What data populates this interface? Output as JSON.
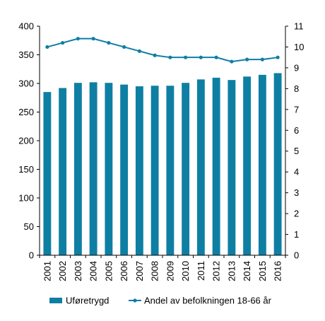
{
  "chart_data": {
    "type": "bar+line",
    "categories": [
      "2001",
      "2002",
      "2003",
      "2004",
      "2005",
      "2006",
      "2007",
      "2008",
      "2009",
      "2010",
      "2011",
      "2012",
      "2013",
      "2014",
      "2015",
      "2016"
    ],
    "series": [
      {
        "name": "Uføretrygd",
        "type": "bar",
        "axis": "left",
        "color": "#0e7fa3",
        "values": [
          285,
          292,
          301,
          302,
          301,
          298,
          295,
          296,
          296,
          301,
          307,
          310,
          306,
          312,
          315,
          318
        ]
      },
      {
        "name": "Andel av befolkningen 18-66 år",
        "type": "line",
        "axis": "right",
        "color": "#0e7fa3",
        "values": [
          10.0,
          10.2,
          10.4,
          10.4,
          10.2,
          10.0,
          9.8,
          9.6,
          9.5,
          9.5,
          9.5,
          9.5,
          9.3,
          9.4,
          9.4,
          9.5
        ]
      }
    ],
    "y_left": {
      "min": 0,
      "max": 400,
      "ticks": [
        "0",
        "50",
        "100",
        "150",
        "200",
        "250",
        "300",
        "350",
        "400"
      ]
    },
    "y_right": {
      "min": 0,
      "max": 11,
      "ticks": [
        "0",
        "1",
        "2",
        "3",
        "4",
        "5",
        "6",
        "7",
        "8",
        "9",
        "10",
        "11"
      ]
    },
    "grid": false,
    "legend_position": "bottom"
  }
}
